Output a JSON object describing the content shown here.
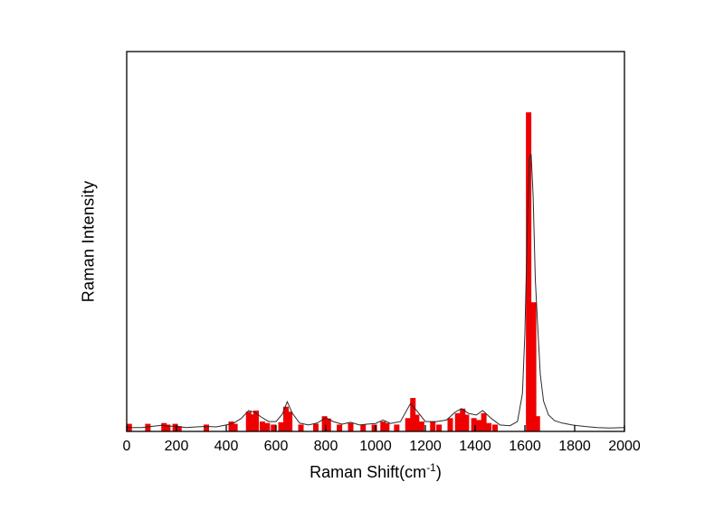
{
  "chart_data": {
    "type": "bar+line",
    "title": "",
    "xlabel": "Raman Shift(cm⁻¹)",
    "xlabel_parts": {
      "main": "Raman Shift(cm",
      "sup": "-1",
      "end": ")"
    },
    "ylabel": "Raman Intensity",
    "xlim": [
      0,
      2000
    ],
    "ylim": [
      0,
      1
    ],
    "x_ticks": [
      0,
      200,
      400,
      600,
      800,
      1000,
      1200,
      1400,
      1600,
      1800,
      2000
    ],
    "grid": "off",
    "legend": "none",
    "bar_color": "#ee0000",
    "line_color": "#2a2a2a",
    "axis_color": "#000000",
    "bars": [
      [
        10,
        0.02
      ],
      [
        85,
        0.02
      ],
      [
        150,
        0.022
      ],
      [
        165,
        0.018
      ],
      [
        195,
        0.02
      ],
      [
        210,
        0.014
      ],
      [
        320,
        0.018
      ],
      [
        420,
        0.026
      ],
      [
        435,
        0.02
      ],
      [
        490,
        0.052
      ],
      [
        505,
        0.045
      ],
      [
        520,
        0.055
      ],
      [
        545,
        0.026
      ],
      [
        565,
        0.022
      ],
      [
        590,
        0.018
      ],
      [
        620,
        0.024
      ],
      [
        640,
        0.065
      ],
      [
        655,
        0.052
      ],
      [
        700,
        0.018
      ],
      [
        760,
        0.02
      ],
      [
        795,
        0.04
      ],
      [
        810,
        0.034
      ],
      [
        855,
        0.018
      ],
      [
        900,
        0.022
      ],
      [
        950,
        0.018
      ],
      [
        995,
        0.018
      ],
      [
        1030,
        0.026
      ],
      [
        1045,
        0.022
      ],
      [
        1085,
        0.018
      ],
      [
        1130,
        0.035
      ],
      [
        1150,
        0.088
      ],
      [
        1165,
        0.044
      ],
      [
        1185,
        0.026
      ],
      [
        1230,
        0.026
      ],
      [
        1255,
        0.018
      ],
      [
        1300,
        0.035
      ],
      [
        1330,
        0.048
      ],
      [
        1350,
        0.06
      ],
      [
        1365,
        0.044
      ],
      [
        1395,
        0.035
      ],
      [
        1415,
        0.03
      ],
      [
        1435,
        0.048
      ],
      [
        1455,
        0.022
      ],
      [
        1480,
        0.018
      ],
      [
        1615,
        0.84
      ],
      [
        1635,
        0.34
      ],
      [
        1650,
        0.04
      ]
    ],
    "line": [
      [
        0,
        0.01
      ],
      [
        60,
        0.01
      ],
      [
        100,
        0.013
      ],
      [
        140,
        0.016
      ],
      [
        170,
        0.014
      ],
      [
        200,
        0.013
      ],
      [
        240,
        0.01
      ],
      [
        280,
        0.012
      ],
      [
        320,
        0.013
      ],
      [
        360,
        0.012
      ],
      [
        400,
        0.017
      ],
      [
        430,
        0.022
      ],
      [
        460,
        0.034
      ],
      [
        490,
        0.055
      ],
      [
        515,
        0.05
      ],
      [
        540,
        0.038
      ],
      [
        570,
        0.026
      ],
      [
        600,
        0.026
      ],
      [
        625,
        0.045
      ],
      [
        645,
        0.078
      ],
      [
        665,
        0.048
      ],
      [
        695,
        0.022
      ],
      [
        730,
        0.017
      ],
      [
        765,
        0.022
      ],
      [
        800,
        0.036
      ],
      [
        830,
        0.026
      ],
      [
        865,
        0.019
      ],
      [
        900,
        0.024
      ],
      [
        935,
        0.017
      ],
      [
        965,
        0.019
      ],
      [
        1000,
        0.021
      ],
      [
        1030,
        0.03
      ],
      [
        1060,
        0.021
      ],
      [
        1100,
        0.026
      ],
      [
        1140,
        0.073
      ],
      [
        1165,
        0.055
      ],
      [
        1200,
        0.026
      ],
      [
        1245,
        0.026
      ],
      [
        1285,
        0.03
      ],
      [
        1320,
        0.051
      ],
      [
        1345,
        0.06
      ],
      [
        1375,
        0.047
      ],
      [
        1405,
        0.043
      ],
      [
        1430,
        0.055
      ],
      [
        1465,
        0.034
      ],
      [
        1500,
        0.017
      ],
      [
        1540,
        0.015
      ],
      [
        1570,
        0.026
      ],
      [
        1590,
        0.1
      ],
      [
        1600,
        0.26
      ],
      [
        1610,
        0.55
      ],
      [
        1618,
        0.72
      ],
      [
        1625,
        0.73
      ],
      [
        1633,
        0.62
      ],
      [
        1642,
        0.4
      ],
      [
        1652,
        0.27
      ],
      [
        1662,
        0.15
      ],
      [
        1675,
        0.08
      ],
      [
        1695,
        0.043
      ],
      [
        1720,
        0.028
      ],
      [
        1750,
        0.022
      ],
      [
        1790,
        0.017
      ],
      [
        1840,
        0.013
      ],
      [
        1890,
        0.01
      ],
      [
        1940,
        0.009
      ],
      [
        2000,
        0.01
      ]
    ]
  }
}
